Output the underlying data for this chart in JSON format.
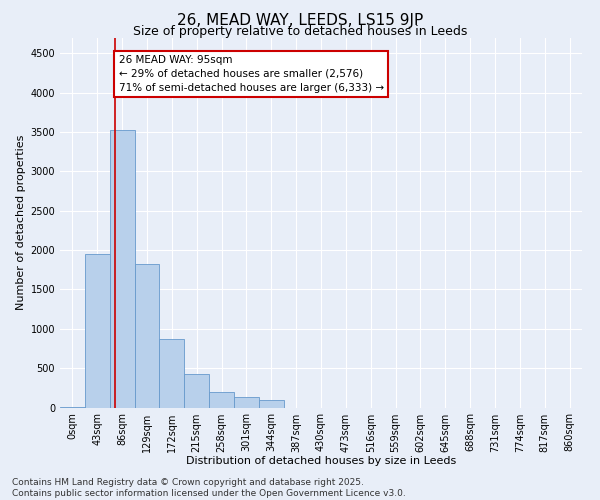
{
  "title_line1": "26, MEAD WAY, LEEDS, LS15 9JP",
  "title_line2": "Size of property relative to detached houses in Leeds",
  "xlabel": "Distribution of detached houses by size in Leeds",
  "ylabel": "Number of detached properties",
  "bar_labels": [
    "0sqm",
    "43sqm",
    "86sqm",
    "129sqm",
    "172sqm",
    "215sqm",
    "258sqm",
    "301sqm",
    "344sqm",
    "387sqm",
    "430sqm",
    "473sqm",
    "516sqm",
    "559sqm",
    "602sqm",
    "645sqm",
    "688sqm",
    "731sqm",
    "774sqm",
    "817sqm",
    "860sqm"
  ],
  "bar_values": [
    5,
    1950,
    3520,
    1820,
    870,
    430,
    200,
    130,
    100,
    0,
    0,
    0,
    0,
    0,
    0,
    0,
    0,
    0,
    0,
    0,
    0
  ],
  "bar_color": "#b8d0eb",
  "bar_edge_color": "#6699cc",
  "vline_color": "#cc0000",
  "annotation_text": "26 MEAD WAY: 95sqm\n← 29% of detached houses are smaller (2,576)\n71% of semi-detached houses are larger (6,333) →",
  "annotation_box_color": "#cc0000",
  "ylim": [
    0,
    4700
  ],
  "yticks": [
    0,
    500,
    1000,
    1500,
    2000,
    2500,
    3000,
    3500,
    4000,
    4500
  ],
  "footnote": "Contains HM Land Registry data © Crown copyright and database right 2025.\nContains public sector information licensed under the Open Government Licence v3.0.",
  "bg_color": "#e8eef8",
  "plot_bg_color": "#e8eef8",
  "grid_color": "#ffffff",
  "title1_fontsize": 11,
  "title2_fontsize": 9,
  "label_fontsize": 8,
  "tick_fontsize": 7,
  "annot_fontsize": 7.5,
  "footnote_fontsize": 6.5
}
